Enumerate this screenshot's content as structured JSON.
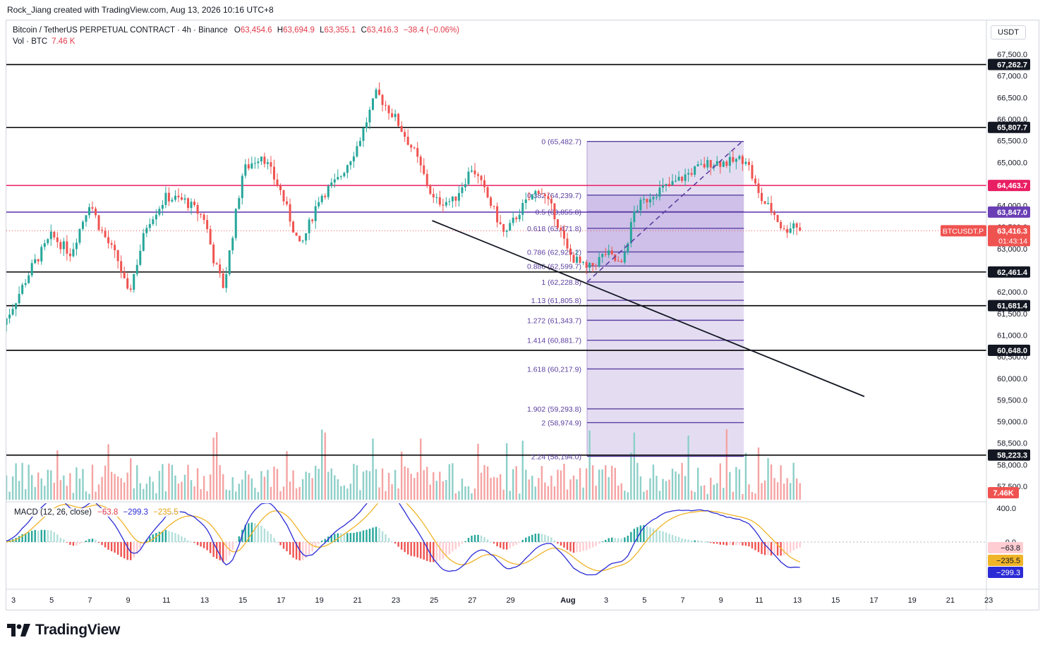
{
  "header": {
    "caption": "Rock_Jiang created with TradingView.com, Aug 13, 2026 10:16 UTC+8"
  },
  "legend": {
    "symbol": "Bitcoin / TetherUS PERPETUAL CONTRACT · 4h · Binance",
    "o_label": "O",
    "o_value": "63,454.6",
    "h_label": "H",
    "h_value": "63,694.9",
    "l_label": "L",
    "l_value": "63,355.1",
    "c_label": "C",
    "c_value": "63,416.3",
    "change": "−38.4 (−0.06%)",
    "vol_label": "Vol · BTC",
    "vol_value": "7.46 K"
  },
  "macd_legend": {
    "label": "MACD (12, 26, close)",
    "hist": "−63.8",
    "macd": "−299.3",
    "signal": "−235.5"
  },
  "currency": "USDT",
  "brand": "TradingView",
  "colors": {
    "up": "#26a69a",
    "down": "#ef5350",
    "vol_up": "#8dcfc8",
    "vol_down": "#f5a3a3",
    "fib": "#5b3fa0",
    "fib_fill": "#b39ddb",
    "resistance_red": "#e91e63",
    "mid_purple": "#6a3fb5",
    "macd_line": "#2b2bd6",
    "signal_line": "#f0b428"
  },
  "chart_data": {
    "type": "candlestick",
    "symbol": "BTCUSDT.P",
    "timeframe": "4h",
    "ylim": [
      57000,
      68000
    ],
    "price_ticks": [
      "67,500.0",
      "67,000.0",
      "66,500.0",
      "66,000.0",
      "65,500.0",
      "65,000.0",
      "64,000.0",
      "63,500.0",
      "63,000.0",
      "62,000.0",
      "61,500.0",
      "61,000.0",
      "60,500.0",
      "60,000.0",
      "59,500.0",
      "59,000.0",
      "58,500.0",
      "58,000.0",
      "57,500.0"
    ],
    "price_tick_values": [
      67500,
      67000,
      66500,
      66000,
      65500,
      65000,
      64000,
      63500,
      63000,
      62000,
      61500,
      61000,
      60500,
      60000,
      59500,
      59000,
      58500,
      58000,
      57500
    ],
    "x_ticks": [
      {
        "label": "3",
        "day": 3
      },
      {
        "label": "5",
        "day": 5
      },
      {
        "label": "7",
        "day": 7
      },
      {
        "label": "9",
        "day": 9
      },
      {
        "label": "11",
        "day": 11
      },
      {
        "label": "13",
        "day": 13
      },
      {
        "label": "15",
        "day": 15
      },
      {
        "label": "17",
        "day": 17
      },
      {
        "label": "19",
        "day": 19
      },
      {
        "label": "21",
        "day": 21
      },
      {
        "label": "23",
        "day": 23
      },
      {
        "label": "25",
        "day": 25
      },
      {
        "label": "27",
        "day": 27
      },
      {
        "label": "29",
        "day": 29
      },
      {
        "label": "Aug",
        "day": 32
      },
      {
        "label": "3",
        "day": 34
      },
      {
        "label": "5",
        "day": 36
      },
      {
        "label": "7",
        "day": 38
      },
      {
        "label": "9",
        "day": 40
      },
      {
        "label": "11",
        "day": 42
      },
      {
        "label": "13",
        "day": 44
      },
      {
        "label": "15",
        "day": 46
      },
      {
        "label": "17",
        "day": 48
      },
      {
        "label": "19",
        "day": 50
      },
      {
        "label": "21",
        "day": 52
      },
      {
        "label": "23",
        "day": 54
      }
    ],
    "horizontal_levels": [
      {
        "value": 67262.7,
        "label": "67,262.7",
        "color": "#000000"
      },
      {
        "value": 65807.7,
        "label": "65,807.7",
        "color": "#000000"
      },
      {
        "value": 64463.7,
        "label": "64,463.7",
        "color": "#e91e63"
      },
      {
        "value": 63847.0,
        "label": "63,847.0",
        "color": "#6a3fb5"
      },
      {
        "value": 62461.4,
        "label": "62,461.4",
        "color": "#000000"
      },
      {
        "value": 61681.4,
        "label": "61,681.4",
        "color": "#000000"
      },
      {
        "value": 60648.0,
        "label": "60,648.0",
        "color": "#000000"
      },
      {
        "value": 58223.3,
        "label": "58,223.3",
        "color": "#000000"
      }
    ],
    "last_price": {
      "value": 63416.3,
      "label": "63,416.3",
      "symbol_label": "BTCUSDT.P",
      "countdown": "01:43:14"
    },
    "volume_label": "7.46K",
    "fib": {
      "start_day": 33.0,
      "end_day": 41.2,
      "levels": [
        {
          "ratio": "0",
          "price": "65,482.7",
          "value": 65482.7
        },
        {
          "ratio": "0.382",
          "price": "64,239.7",
          "value": 64239.7
        },
        {
          "ratio": "0.5",
          "price": "63,855.8",
          "value": 63855.8
        },
        {
          "ratio": "0.618",
          "price": "63,471.8",
          "value": 63471.8
        },
        {
          "ratio": "0.786",
          "price": "62,925.2",
          "value": 62925.2
        },
        {
          "ratio": "0.886",
          "price": "62,599.7",
          "value": 62599.7
        },
        {
          "ratio": "1",
          "price": "62,228.8",
          "value": 62228.8
        },
        {
          "ratio": "1.13",
          "price": "61,805.8",
          "value": 61805.8
        },
        {
          "ratio": "1.272",
          "price": "61,343.7",
          "value": 61343.7
        },
        {
          "ratio": "1.414",
          "price": "60,881.7",
          "value": 60881.7
        },
        {
          "ratio": "1.618",
          "price": "60,217.9",
          "value": 60217.9
        },
        {
          "ratio": "1.902",
          "price": "59,293.8",
          "value": 59293.8
        },
        {
          "ratio": "2",
          "price": "58,974.9",
          "value": 58974.9
        },
        {
          "ratio": "2.24",
          "price": "58,194.0",
          "value": 58194.0
        }
      ]
    },
    "trendline": {
      "from": {
        "day": 24.9,
        "value": 63650
      },
      "to": {
        "day": 47.5,
        "value": 59580
      }
    },
    "dashed_trend": {
      "from": {
        "day": 33.0,
        "value": 62230
      },
      "to": {
        "day": 41.1,
        "value": 65480
      }
    },
    "macd_ticks": [
      {
        "label": "400.0",
        "value": 400
      },
      {
        "label": "0.0",
        "value": 0
      }
    ],
    "macd_ylim": [
      -800,
      700
    ],
    "macd_values": {
      "hist": {
        "label": "−63.8",
        "value": -63.8
      },
      "signal": {
        "label": "−235.5",
        "value": -235.5
      },
      "macd": {
        "label": "−299.3",
        "value": -299.3
      }
    },
    "price_path": [
      {
        "day": 2.3,
        "value": 61100
      },
      {
        "day": 3.0,
        "value": 61700
      },
      {
        "day": 4.0,
        "value": 62600
      },
      {
        "day": 5.0,
        "value": 63300
      },
      {
        "day": 6.0,
        "value": 62900
      },
      {
        "day": 7.0,
        "value": 64100
      },
      {
        "day": 7.5,
        "value": 63500
      },
      {
        "day": 8.5,
        "value": 62700
      },
      {
        "day": 9.0,
        "value": 61900
      },
      {
        "day": 10.0,
        "value": 63600
      },
      {
        "day": 11.0,
        "value": 64200
      },
      {
        "day": 12.0,
        "value": 64100
      },
      {
        "day": 13.0,
        "value": 63700
      },
      {
        "day": 13.5,
        "value": 62700
      },
      {
        "day": 14.0,
        "value": 62100
      },
      {
        "day": 15.0,
        "value": 64800
      },
      {
        "day": 16.0,
        "value": 65200
      },
      {
        "day": 17.0,
        "value": 64300
      },
      {
        "day": 18.0,
        "value": 63000
      },
      {
        "day": 19.0,
        "value": 64200
      },
      {
        "day": 20.0,
        "value": 64600
      },
      {
        "day": 21.0,
        "value": 65400
      },
      {
        "day": 22.0,
        "value": 66600
      },
      {
        "day": 23.0,
        "value": 66000
      },
      {
        "day": 24.0,
        "value": 65200
      },
      {
        "day": 25.0,
        "value": 64100
      },
      {
        "day": 26.0,
        "value": 64100
      },
      {
        "day": 27.0,
        "value": 64900
      },
      {
        "day": 28.0,
        "value": 64000
      },
      {
        "day": 28.7,
        "value": 63300
      },
      {
        "day": 29.5,
        "value": 63900
      },
      {
        "day": 30.5,
        "value": 64400
      },
      {
        "day": 31.3,
        "value": 63800
      },
      {
        "day": 32.0,
        "value": 62900
      },
      {
        "day": 33.0,
        "value": 62500
      },
      {
        "day": 34.0,
        "value": 62900
      },
      {
        "day": 34.8,
        "value": 62600
      },
      {
        "day": 35.5,
        "value": 63900
      },
      {
        "day": 36.5,
        "value": 64300
      },
      {
        "day": 37.5,
        "value": 64500
      },
      {
        "day": 38.5,
        "value": 64800
      },
      {
        "day": 39.5,
        "value": 65000
      },
      {
        "day": 40.5,
        "value": 65000
      },
      {
        "day": 41.3,
        "value": 65100
      },
      {
        "day": 42.0,
        "value": 64200
      },
      {
        "day": 42.8,
        "value": 63800
      },
      {
        "day": 43.3,
        "value": 63400
      },
      {
        "day": 43.8,
        "value": 63600
      },
      {
        "day": 44.2,
        "value": 63420
      }
    ]
  }
}
